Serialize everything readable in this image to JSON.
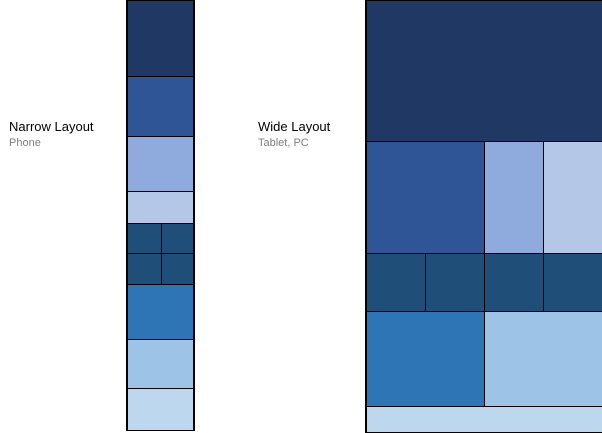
{
  "narrow": {
    "title": "Narrow Layout",
    "subtitle": "Phone"
  },
  "wide": {
    "title": "Wide Layout",
    "subtitle": "Tablet, PC"
  },
  "colors": {
    "navy": "#203864",
    "royal_blue": "#2f5597",
    "periwinkle": "#8faadc",
    "pale_periwinkle": "#b4c7e7",
    "steel_blue": "#1f4e79",
    "medium_blue": "#2e75b6",
    "sky_blue": "#9dc3e6",
    "pale_sky": "#bdd7ee"
  }
}
